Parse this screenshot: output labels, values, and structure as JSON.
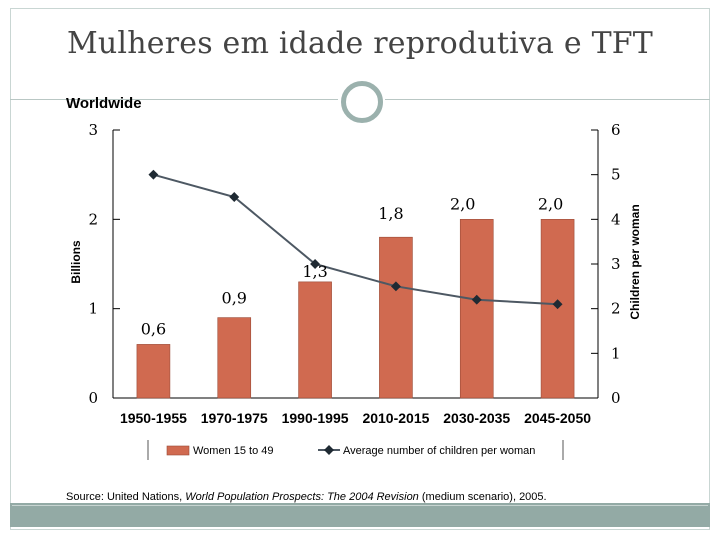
{
  "slide": {
    "title": "Mulheres em idade reprodutiva e TFT",
    "subtitle": "Worldwide",
    "source_prefix": "Source: United Nations, ",
    "source_italic": "World Population Prospects: The 2004 Revision",
    "source_suffix": " (medium scenario), 2005."
  },
  "colors": {
    "bar": "#d06a50",
    "line": "#4d5863",
    "accent": "#9bb1ad",
    "footer": "#93aaa5"
  },
  "chart_data": {
    "type": "bar+line",
    "categories": [
      "1950-1955",
      "1970-1975",
      "1990-1995",
      "2010-2015",
      "2030-2035",
      "2045-2050"
    ],
    "bar_series": {
      "name": "Women 15 to 49",
      "values": [
        0.6,
        0.9,
        1.3,
        1.8,
        2.0,
        2.0
      ],
      "labels": [
        "0,6",
        "0,9",
        "1,3",
        "1,8",
        "2,0",
        "2,0"
      ]
    },
    "line_series": {
      "name": "Average number of children per woman",
      "values": [
        5.0,
        4.5,
        3.0,
        2.5,
        2.2,
        2.1
      ]
    },
    "left_axis": {
      "label": "Billions",
      "ylim": [
        0,
        3
      ],
      "ticks": [
        "0",
        "1",
        "2",
        "3"
      ]
    },
    "right_axis": {
      "label": "Children per woman",
      "ylim": [
        0,
        6
      ],
      "ticks": [
        "0",
        "1",
        "2",
        "3",
        "4",
        "5",
        "6"
      ]
    },
    "legend": [
      "Women 15 to 49",
      "Average number of children per woman"
    ]
  }
}
